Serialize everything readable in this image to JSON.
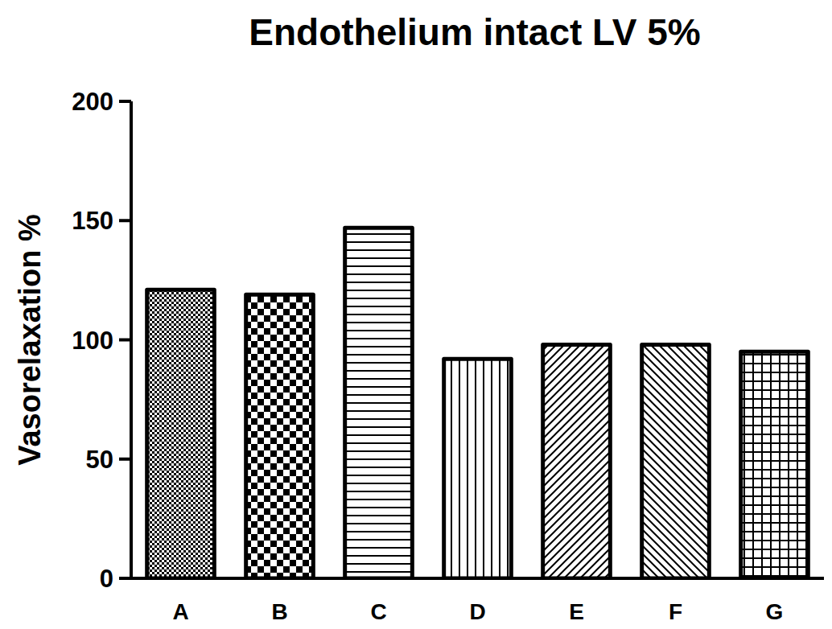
{
  "chart_data": {
    "type": "bar",
    "title": "Endothelium intact LV 5%",
    "y_label": "Vasorelaxation %",
    "categories": [
      "A",
      "B",
      "C",
      "D",
      "E",
      "F",
      "G"
    ],
    "values": [
      121,
      119,
      147,
      92,
      98,
      98,
      95
    ],
    "color": "#000000",
    "ylim": [
      0,
      200
    ],
    "yticks": [
      0,
      50,
      100,
      150,
      200
    ]
  }
}
